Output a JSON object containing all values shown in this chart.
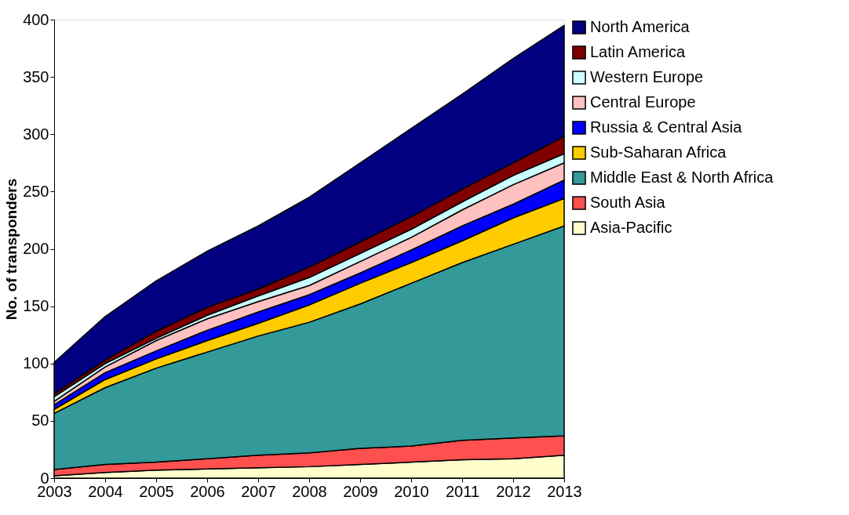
{
  "chart_data": {
    "type": "area",
    "stacked": true,
    "ylabel": "No. of transponders",
    "x": [
      2003,
      2004,
      2005,
      2006,
      2007,
      2008,
      2009,
      2010,
      2011,
      2012,
      2013
    ],
    "xlim": [
      2003,
      2013
    ],
    "xticks": [
      2003,
      2004,
      2005,
      2006,
      2007,
      2008,
      2009,
      2010,
      2011,
      2012,
      2013
    ],
    "ylim": [
      0,
      400
    ],
    "yticks": [
      0,
      50,
      100,
      150,
      200,
      250,
      300,
      350,
      400
    ],
    "grid": false,
    "legend": "right",
    "series": [
      {
        "name": "Asia-Pacific",
        "color": "#ffffcc",
        "values": [
          2,
          5,
          7,
          8,
          9,
          10,
          12,
          14,
          16,
          17,
          20
        ]
      },
      {
        "name": "South Asia",
        "color": "#ff5050",
        "values": [
          5.5,
          7,
          7,
          9,
          11,
          12,
          14,
          14,
          17,
          18,
          17
        ]
      },
      {
        "name": "Middle East & North Africa",
        "color": "#339999",
        "values": [
          49,
          67,
          82,
          93,
          104,
          114,
          126,
          142,
          155,
          169,
          183
        ]
      },
      {
        "name": "Sub-Saharan Africa",
        "color": "#ffcc00",
        "values": [
          3.5,
          7,
          8,
          10,
          11,
          15,
          18,
          18,
          19,
          23,
          24
        ]
      },
      {
        "name": "Russia & Central Asia",
        "color": "#0000ff",
        "values": [
          4,
          6,
          7,
          9,
          10,
          9,
          9,
          11,
          13,
          12,
          16
        ]
      },
      {
        "name": "Central Europe",
        "color": "#ffc0c0",
        "values": [
          3,
          5,
          9,
          10,
          9,
          8,
          10,
          11,
          14,
          17,
          15
        ]
      },
      {
        "name": "Western Europe",
        "color": "#ccffff",
        "values": [
          4,
          3,
          2,
          3,
          5,
          7,
          7,
          7,
          7,
          8,
          8
        ]
      },
      {
        "name": "Latin America",
        "color": "#800000",
        "values": [
          2.6,
          3,
          6,
          7,
          6,
          9,
          10,
          11,
          11,
          11,
          15
        ]
      },
      {
        "name": "North America",
        "color": "#000080",
        "values": [
          27.4,
          38,
          44,
          49,
          55,
          61,
          69,
          77,
          83,
          91,
          97
        ]
      }
    ]
  }
}
